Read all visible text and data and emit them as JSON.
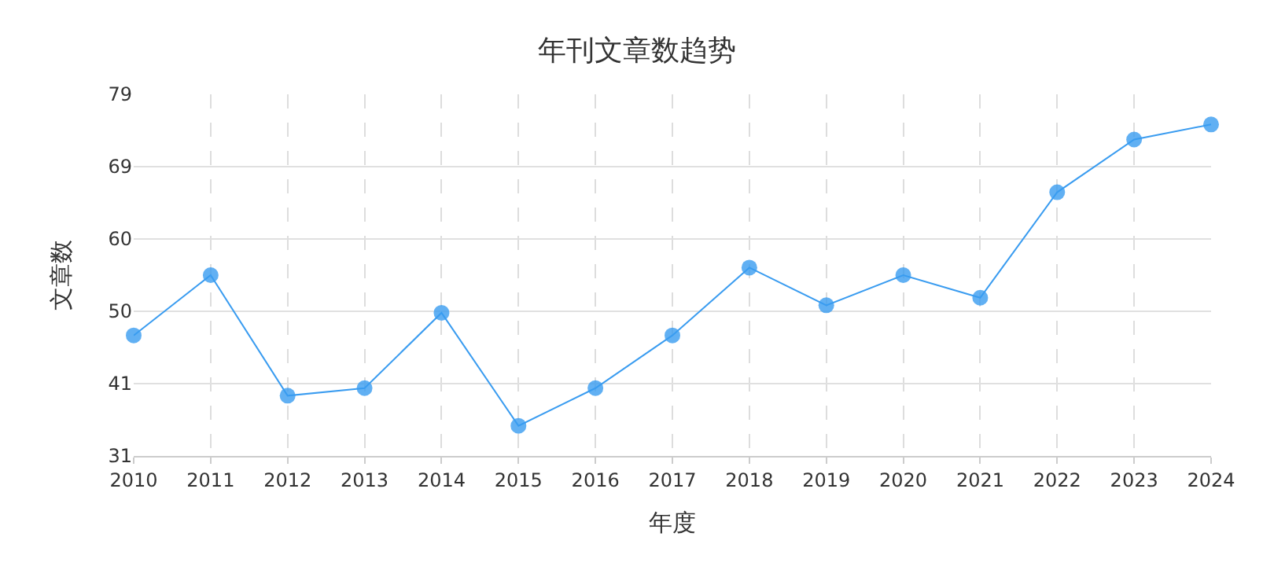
{
  "chart_data": {
    "type": "line",
    "title": "年刊文章数趋势",
    "xlabel": "年度",
    "ylabel": "文章数",
    "categories": [
      "2010",
      "2011",
      "2012",
      "2013",
      "2014",
      "2015",
      "2016",
      "2017",
      "2018",
      "2019",
      "2020",
      "2021",
      "2022",
      "2023",
      "2024"
    ],
    "series": [
      {
        "color": "#3a9cf0",
        "values": [
          47,
          55,
          39,
          40,
          50,
          35,
          40,
          47,
          56,
          51,
          55,
          52,
          66,
          73,
          75
        ]
      }
    ],
    "ylim": [
      31,
      79
    ],
    "yticks": [
      31,
      {
        "value": 40.6,
        "label": "41"
      },
      {
        "value": 50.2,
        "label": "50"
      },
      {
        "value": 59.8,
        "label": "60"
      },
      {
        "value": 69.4,
        "label": "69"
      },
      79
    ],
    "grid": true,
    "marker": "circle",
    "line_style": "solid",
    "legend": false
  }
}
